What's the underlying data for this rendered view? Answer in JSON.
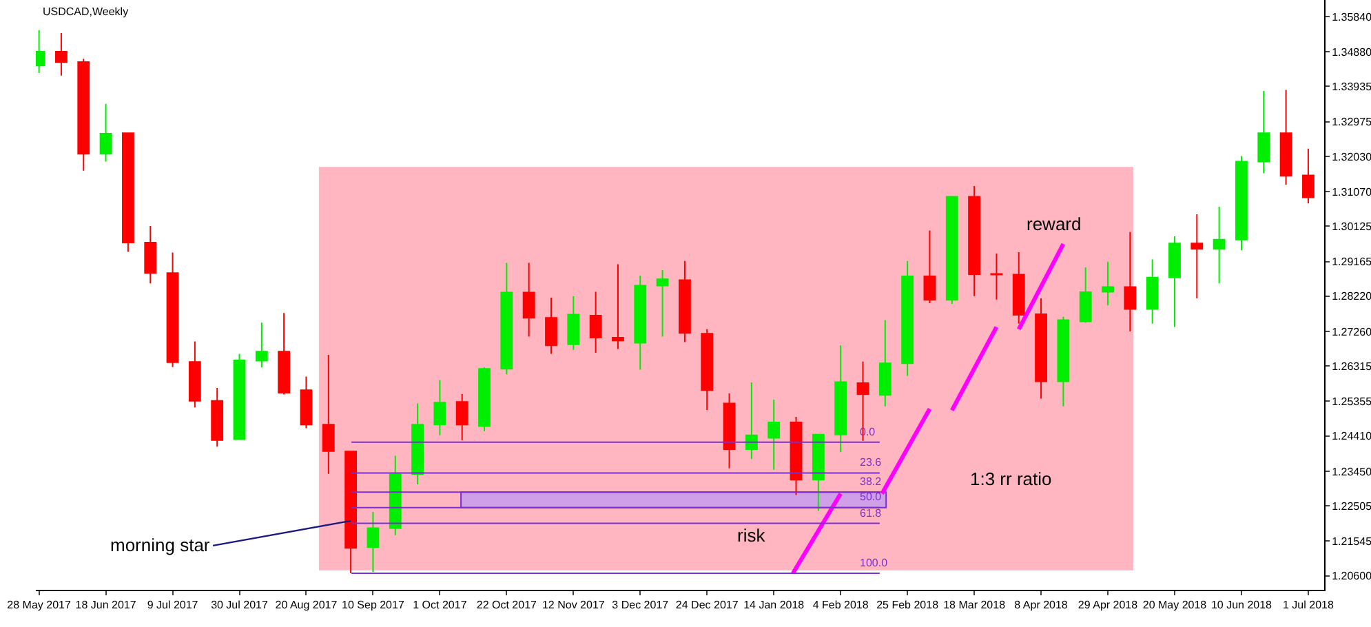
{
  "chart_data": {
    "type": "candlestick",
    "title": "USDCAD,Weekly",
    "x": [
      "2017-05-28",
      "2017-06-04",
      "2017-06-11",
      "2017-06-18",
      "2017-06-25",
      "2017-07-02",
      "2017-07-09",
      "2017-07-16",
      "2017-07-23",
      "2017-07-30",
      "2017-08-06",
      "2017-08-13",
      "2017-08-20",
      "2017-08-27",
      "2017-09-03",
      "2017-09-10",
      "2017-09-17",
      "2017-09-24",
      "2017-10-01",
      "2017-10-08",
      "2017-10-15",
      "2017-10-22",
      "2017-10-29",
      "2017-11-05",
      "2017-11-12",
      "2017-11-19",
      "2017-11-26",
      "2017-12-03",
      "2017-12-10",
      "2017-12-17",
      "2017-12-24",
      "2017-12-31",
      "2018-01-07",
      "2018-01-14",
      "2018-01-21",
      "2018-01-28",
      "2018-02-04",
      "2018-02-11",
      "2018-02-18",
      "2018-02-25",
      "2018-03-04",
      "2018-03-11",
      "2018-03-18",
      "2018-03-25",
      "2018-04-01",
      "2018-04-08",
      "2018-04-15",
      "2018-04-22",
      "2018-04-29",
      "2018-05-06",
      "2018-05-13",
      "2018-05-20",
      "2018-05-27",
      "2018-06-03",
      "2018-06-10",
      "2018-06-17",
      "2018-06-24",
      "2018-07-01"
    ],
    "ohlc": [
      [
        1.345,
        1.3547,
        1.343,
        1.3488
      ],
      [
        1.3488,
        1.3539,
        1.3423,
        1.346
      ],
      [
        1.346,
        1.3469,
        1.3164,
        1.321
      ],
      [
        1.321,
        1.3346,
        1.3189,
        1.3265
      ],
      [
        1.3266,
        1.3266,
        1.2943,
        1.2968
      ],
      [
        1.2968,
        1.3013,
        1.2857,
        1.2885
      ],
      [
        1.2885,
        1.2941,
        1.2629,
        1.2642
      ],
      [
        1.2643,
        1.2699,
        1.2519,
        1.2537
      ],
      [
        1.2537,
        1.2572,
        1.2412,
        1.243
      ],
      [
        1.2432,
        1.2665,
        1.2432,
        1.2647
      ],
      [
        1.2646,
        1.275,
        1.2628,
        1.2671
      ],
      [
        1.2671,
        1.2776,
        1.2554,
        1.2559
      ],
      [
        1.2566,
        1.2603,
        1.2462,
        1.2472
      ],
      [
        1.2472,
        1.2662,
        1.2338,
        1.24
      ],
      [
        1.2399,
        1.2399,
        1.2067,
        1.2136
      ],
      [
        1.2138,
        1.2234,
        1.2071,
        1.219
      ],
      [
        1.219,
        1.2387,
        1.2171,
        1.2337
      ],
      [
        1.2337,
        1.253,
        1.2309,
        1.2472
      ],
      [
        1.2472,
        1.2593,
        1.2443,
        1.2532
      ],
      [
        1.2534,
        1.2555,
        1.243,
        1.2472
      ],
      [
        1.2468,
        1.2628,
        1.2454,
        1.2624
      ],
      [
        1.2624,
        1.2913,
        1.2609,
        1.2832
      ],
      [
        1.2832,
        1.2913,
        1.2712,
        1.2763
      ],
      [
        1.2763,
        1.2818,
        1.2665,
        1.2688
      ],
      [
        1.2691,
        1.2822,
        1.2676,
        1.2772
      ],
      [
        1.2769,
        1.2834,
        1.2668,
        1.2709
      ],
      [
        1.2709,
        1.2909,
        1.2678,
        1.2701
      ],
      [
        1.2695,
        1.2878,
        1.2622,
        1.2851
      ],
      [
        1.2851,
        1.2893,
        1.2712,
        1.2868
      ],
      [
        1.2866,
        1.2918,
        1.2697,
        1.2722
      ],
      [
        1.272,
        1.2732,
        1.2512,
        1.2566
      ],
      [
        1.253,
        1.2557,
        1.2353,
        1.2405
      ],
      [
        1.2405,
        1.2587,
        1.2378,
        1.2443
      ],
      [
        1.2436,
        1.254,
        1.2349,
        1.2478
      ],
      [
        1.2478,
        1.2493,
        1.228,
        1.2322
      ],
      [
        1.2322,
        1.2445,
        1.2237,
        1.2445
      ],
      [
        1.2445,
        1.2688,
        1.2397,
        1.2588
      ],
      [
        1.2585,
        1.2644,
        1.2428,
        1.2555
      ],
      [
        1.2553,
        1.2757,
        1.2522,
        1.2639
      ],
      [
        1.2639,
        1.2918,
        1.2605,
        1.2876
      ],
      [
        1.2876,
        1.3001,
        1.2803,
        1.2812
      ],
      [
        1.2812,
        1.3093,
        1.2801,
        1.3093
      ],
      [
        1.3093,
        1.3122,
        1.2822,
        1.2882
      ],
      [
        1.2883,
        1.2938,
        1.2813,
        1.2881
      ],
      [
        1.2881,
        1.2942,
        1.2747,
        1.2771
      ],
      [
        1.2773,
        1.2816,
        1.2543,
        1.259
      ],
      [
        1.259,
        1.2766,
        1.2522,
        1.2757
      ],
      [
        1.2753,
        1.29,
        1.275,
        1.2833
      ],
      [
        1.2834,
        1.2916,
        1.2797,
        1.2847
      ],
      [
        1.2847,
        1.2997,
        1.2726,
        1.2787
      ],
      [
        1.2787,
        1.2922,
        1.2747,
        1.2873
      ],
      [
        1.2873,
        1.2985,
        1.2738,
        1.2966
      ],
      [
        1.2966,
        1.3045,
        1.2816,
        1.2951
      ],
      [
        1.2951,
        1.3066,
        1.2857,
        1.2976
      ],
      [
        1.2976,
        1.3204,
        1.2947,
        1.3189
      ],
      [
        1.3189,
        1.3381,
        1.3157,
        1.3266
      ],
      [
        1.3266,
        1.3384,
        1.3126,
        1.315
      ],
      [
        1.3151,
        1.3224,
        1.3075,
        1.3091
      ]
    ],
    "colors": [
      "#00ee00",
      "#ff0000",
      "#ff0000",
      "#00ee00",
      "#ff0000",
      "#ff0000",
      "#ff0000",
      "#ff0000",
      "#ff0000",
      "#00ee00",
      "#00ee00",
      "#ff0000",
      "#ff0000",
      "#ff0000",
      "#ff0000",
      "#00ee00",
      "#00ee00",
      "#00ee00",
      "#00ee00",
      "#ff0000",
      "#00ee00",
      "#00ee00",
      "#ff0000",
      "#ff0000",
      "#00ee00",
      "#ff0000",
      "#ff0000",
      "#00ee00",
      "#00ee00",
      "#ff0000",
      "#ff0000",
      "#ff0000",
      "#00ee00",
      "#00ee00",
      "#ff0000",
      "#00ee00",
      "#00ee00",
      "#ff0000",
      "#00ee00",
      "#00ee00",
      "#ff0000",
      "#00ee00",
      "#ff0000",
      "#ff0000",
      "#ff0000",
      "#ff0000",
      "#00ee00",
      "#00ee00",
      "#00ee00",
      "#ff0000",
      "#00ee00",
      "#00ee00",
      "#ff0000",
      "#00ee00",
      "#00ee00",
      "#00ee00",
      "#ff0000",
      "#ff0000"
    ],
    "series": [
      {
        "type": "line",
        "color": "#ff00ff",
        "x": [
          "2018-01-20",
          "2018-02-04",
          "2018-02-10",
          "2018-02-17",
          "2018-03-04",
          "2018-03-07",
          "2018-03-11",
          "2018-03-25",
          "2018-03-28",
          "2018-04-01",
          "2018-04-15"
        ],
        "values": [
          1.2067,
          1.2284,
          null,
          1.2284,
          1.2515,
          null,
          1.2511,
          1.2738,
          null,
          1.2732,
          1.2964
        ]
      }
    ],
    "xlim": [
      "2017-05-27",
      "2018-07-06"
    ],
    "xticks": [
      {
        "value": "2017-05-28",
        "label": "28 May 2017"
      },
      {
        "value": "2017-06-18",
        "label": "18 Jun 2017"
      },
      {
        "value": "2017-07-09",
        "label": "9 Jul 2017"
      },
      {
        "value": "2017-07-30",
        "label": "30 Jul 2017"
      },
      {
        "value": "2017-08-20",
        "label": "20 Aug 2017"
      },
      {
        "value": "2017-09-10",
        "label": "10 Sep 2017"
      },
      {
        "value": "2017-10-01",
        "label": "1 Oct 2017"
      },
      {
        "value": "2017-10-22",
        "label": "22 Oct 2017"
      },
      {
        "value": "2017-11-12",
        "label": "12 Nov 2017"
      },
      {
        "value": "2017-12-03",
        "label": "3 Dec 2017"
      },
      {
        "value": "2017-12-24",
        "label": "24 Dec 2017"
      },
      {
        "value": "2018-01-14",
        "label": "14 Jan 2018"
      },
      {
        "value": "2018-02-04",
        "label": "4 Feb 2018"
      },
      {
        "value": "2018-02-25",
        "label": "25 Feb 2018"
      },
      {
        "value": "2018-03-18",
        "label": "18 Mar 2018"
      },
      {
        "value": "2018-04-08",
        "label": "8 Apr 2018"
      },
      {
        "value": "2018-04-29",
        "label": "29 Apr 2018"
      },
      {
        "value": "2018-05-20",
        "label": "20 May 2018"
      },
      {
        "value": "2018-06-10",
        "label": "10 Jun 2018"
      },
      {
        "value": "2018-07-01",
        "label": "1 Jul 2018"
      }
    ],
    "ylim": [
      1.2022,
      1.3629
    ],
    "yticks": [
      {
        "value": 1.3584,
        "label": "1.35840"
      },
      {
        "value": 1.3488,
        "label": "1.34880"
      },
      {
        "value": 1.33935,
        "label": "1.33935"
      },
      {
        "value": 1.32975,
        "label": "1.32975"
      },
      {
        "value": 1.3203,
        "label": "1.32030"
      },
      {
        "value": 1.3107,
        "label": "1.31070"
      },
      {
        "value": 1.30125,
        "label": "1.30125"
      },
      {
        "value": 1.29165,
        "label": "1.29165"
      },
      {
        "value": 1.2822,
        "label": "1.28220"
      },
      {
        "value": 1.2726,
        "label": "1.27260"
      },
      {
        "value": 1.26315,
        "label": "1.26315"
      },
      {
        "value": 1.25355,
        "label": "1.25355"
      },
      {
        "value": 1.2441,
        "label": "1.24410"
      },
      {
        "value": 1.2345,
        "label": "1.23450"
      },
      {
        "value": 1.22505,
        "label": "1.22505"
      },
      {
        "value": 1.21545,
        "label": "1.21545"
      },
      {
        "value": 1.206,
        "label": "1.20600"
      }
    ],
    "bands": [
      {
        "axis": "x",
        "from": "2017-08-24",
        "to": "2018-05-07",
        "color": "#ffb6c1"
      },
      {
        "axis": "y",
        "from": 1.2246,
        "to": 1.2288,
        "color": "#cf9fe8"
      }
    ],
    "ref_lines": [
      {
        "axis": "y",
        "value": 1.2424,
        "color": "#7b2fd0"
      },
      {
        "axis": "y",
        "value": 1.234,
        "color": "#7b2fd0"
      },
      {
        "axis": "y",
        "value": 1.2288,
        "color": "#7b2fd0"
      },
      {
        "axis": "y",
        "value": 1.2246,
        "color": "#7b2fd0"
      },
      {
        "axis": "y",
        "value": 1.2203,
        "color": "#7b2fd0"
      },
      {
        "axis": "y",
        "value": 1.2067,
        "color": "#7b2fd0"
      }
    ],
    "annotations": [
      {
        "text": "morning star",
        "x": "2017-09-03",
        "y": 1.221
      },
      "risk",
      "reward",
      "1:3 rr ratio",
      "0.0",
      "23.6",
      "38.2",
      "50.0",
      "61.8",
      "100.0"
    ],
    "line_style": "solid"
  }
}
